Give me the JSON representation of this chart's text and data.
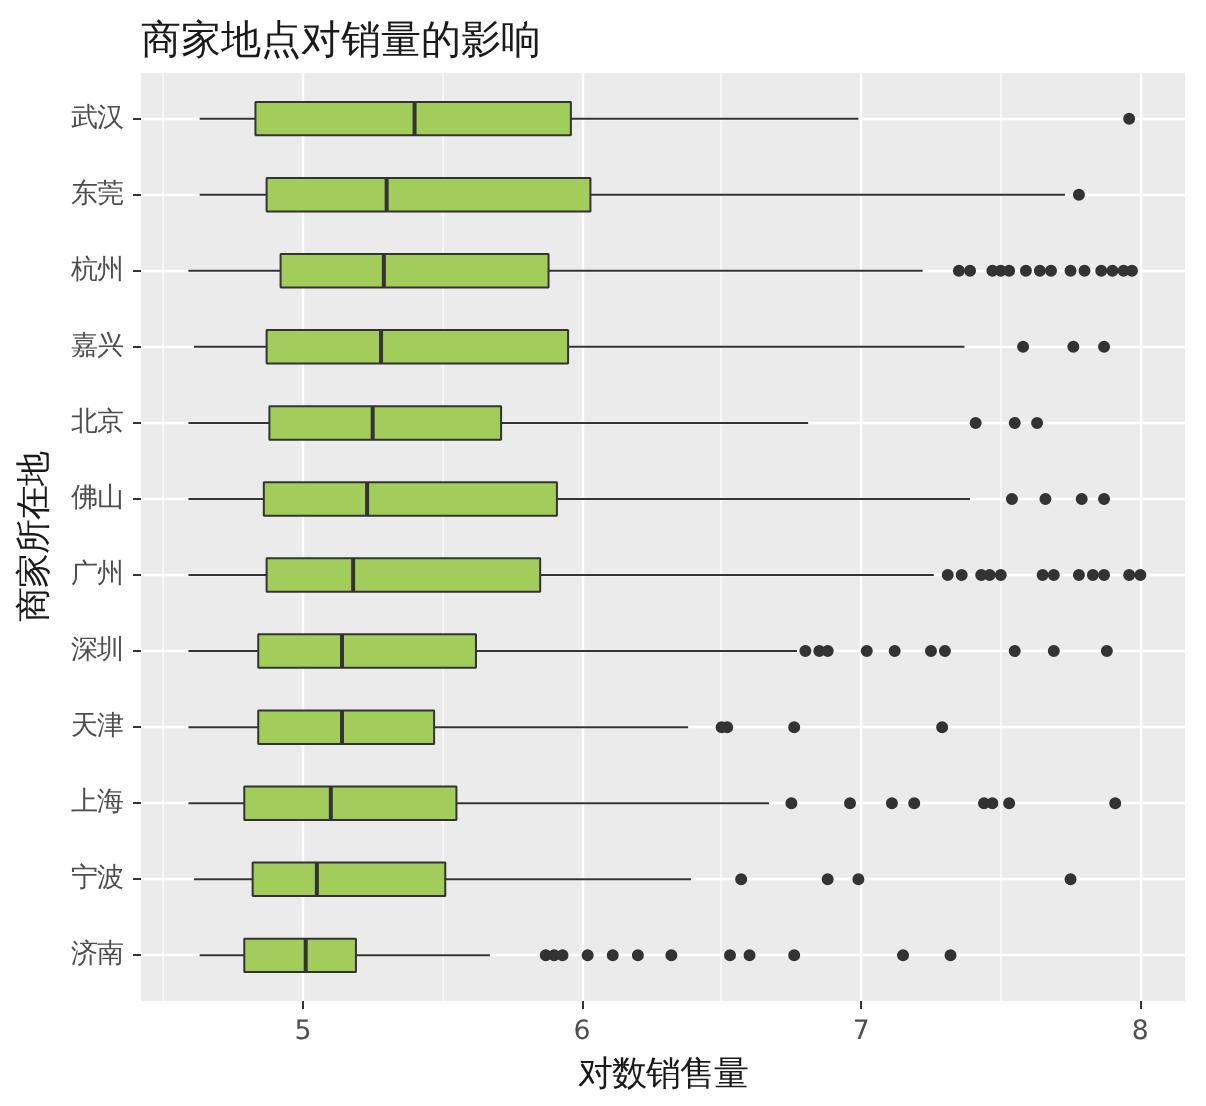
{
  "chart_data": {
    "type": "box",
    "title": "商家地点对销量的影响",
    "xlabel": "对数销售量",
    "ylabel": "商家所在地",
    "orientation": "horizontal",
    "grid": true,
    "categories": [
      "武汉",
      "东莞",
      "杭州",
      "嘉兴",
      "北京",
      "佛山",
      "广州",
      "深圳",
      "天津",
      "上海",
      "宁波",
      "济南"
    ],
    "xlim": [
      4.42,
      8.16
    ],
    "xticks": [
      5,
      6,
      7,
      8
    ],
    "series": [
      {
        "color": "#a3cd5a",
        "boxes": [
          {
            "low": 4.63,
            "q1": 4.83,
            "median": 5.4,
            "q3": 5.96,
            "high": 6.99,
            "outliers": [
              7.96
            ]
          },
          {
            "low": 4.63,
            "q1": 4.87,
            "median": 5.3,
            "q3": 6.03,
            "high": 7.73,
            "outliers": [
              7.78
            ]
          },
          {
            "low": 4.59,
            "q1": 4.92,
            "median": 5.29,
            "q3": 5.88,
            "high": 7.22,
            "outliers": [
              7.35,
              7.39,
              7.47,
              7.5,
              7.53,
              7.59,
              7.64,
              7.68,
              7.75,
              7.8,
              7.86,
              7.9,
              7.94,
              7.97
            ]
          },
          {
            "low": 4.61,
            "q1": 4.87,
            "median": 5.28,
            "q3": 5.95,
            "high": 7.37,
            "outliers": [
              7.58,
              7.76,
              7.87
            ]
          },
          {
            "low": 4.59,
            "q1": 4.88,
            "median": 5.25,
            "q3": 5.71,
            "high": 6.81,
            "outliers": [
              7.41,
              7.55,
              7.63
            ]
          },
          {
            "low": 4.59,
            "q1": 4.86,
            "median": 5.23,
            "q3": 5.91,
            "high": 7.39,
            "outliers": [
              7.54,
              7.66,
              7.79,
              7.87
            ]
          },
          {
            "low": 4.59,
            "q1": 4.87,
            "median": 5.18,
            "q3": 5.85,
            "high": 7.26,
            "outliers": [
              7.31,
              7.36,
              7.43,
              7.46,
              7.5,
              7.65,
              7.69,
              7.78,
              7.83,
              7.87,
              7.96,
              8.0
            ]
          },
          {
            "low": 4.59,
            "q1": 4.84,
            "median": 5.14,
            "q3": 5.62,
            "high": 6.77,
            "outliers": [
              6.8,
              6.85,
              6.88,
              7.02,
              7.12,
              7.25,
              7.3,
              7.55,
              7.69,
              7.88
            ]
          },
          {
            "low": 4.59,
            "q1": 4.84,
            "median": 5.14,
            "q3": 5.47,
            "high": 6.38,
            "outliers": [
              6.5,
              6.52,
              6.76,
              7.29
            ]
          },
          {
            "low": 4.59,
            "q1": 4.79,
            "median": 5.1,
            "q3": 5.55,
            "high": 6.67,
            "outliers": [
              6.75,
              6.96,
              7.11,
              7.19,
              7.44,
              7.47,
              7.53,
              7.91
            ]
          },
          {
            "low": 4.61,
            "q1": 4.82,
            "median": 5.05,
            "q3": 5.51,
            "high": 6.39,
            "outliers": [
              6.57,
              6.88,
              6.99,
              7.75
            ]
          },
          {
            "low": 4.63,
            "q1": 4.79,
            "median": 5.01,
            "q3": 5.19,
            "high": 5.67,
            "outliers": [
              5.87,
              5.9,
              5.93,
              6.02,
              6.11,
              6.2,
              6.32,
              6.53,
              6.6,
              6.76,
              7.15,
              7.32
            ]
          }
        ]
      }
    ]
  }
}
